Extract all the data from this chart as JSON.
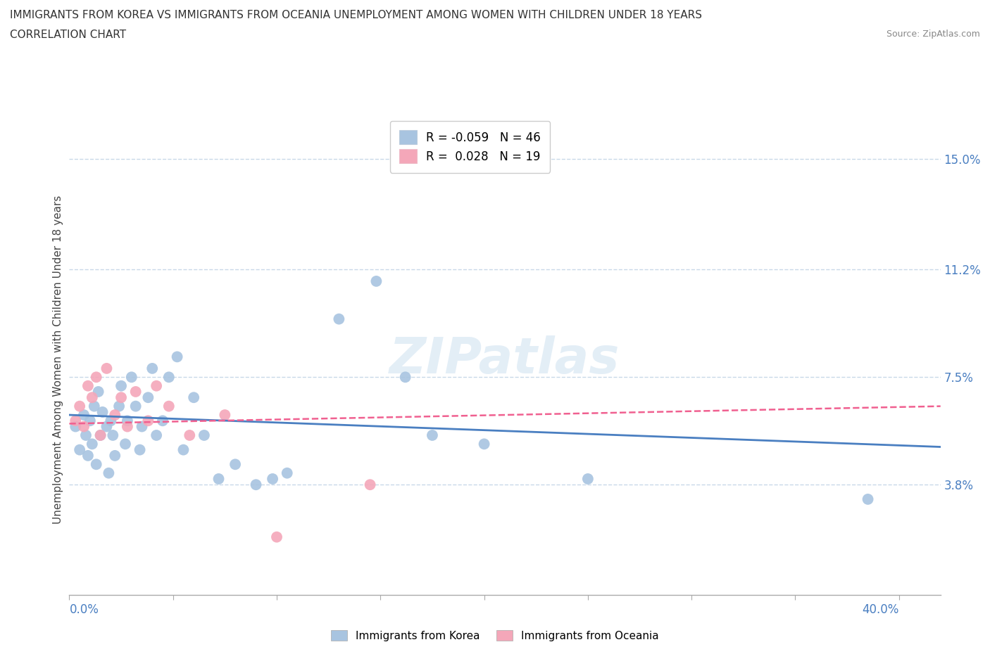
{
  "title_line1": "IMMIGRANTS FROM KOREA VS IMMIGRANTS FROM OCEANIA UNEMPLOYMENT AMONG WOMEN WITH CHILDREN UNDER 18 YEARS",
  "title_line2": "CORRELATION CHART",
  "source_text": "Source: ZipAtlas.com",
  "ylabel_ticks": [
    0.038,
    0.075,
    0.112,
    0.15
  ],
  "ylabel_labels": [
    "3.8%",
    "7.5%",
    "11.2%",
    "15.0%"
  ],
  "xmin": 0.0,
  "xmax": 0.42,
  "ymin": 0.0,
  "ymax": 0.162,
  "ylabel": "Unemployment Among Women with Children Under 18 years",
  "legend_korea_R": "-0.059",
  "legend_korea_N": "46",
  "legend_oceania_R": "0.028",
  "legend_oceania_N": "19",
  "korea_color": "#a8c4e0",
  "oceania_color": "#f4a7b9",
  "korea_line_color": "#4a7fc1",
  "oceania_line_color": "#f06090",
  "grid_color": "#c8d8e8",
  "watermark": "ZIPatlas",
  "korea_scatter_x": [
    0.003,
    0.005,
    0.007,
    0.008,
    0.009,
    0.01,
    0.011,
    0.012,
    0.013,
    0.014,
    0.015,
    0.016,
    0.018,
    0.019,
    0.02,
    0.021,
    0.022,
    0.024,
    0.025,
    0.027,
    0.028,
    0.03,
    0.032,
    0.034,
    0.035,
    0.038,
    0.04,
    0.042,
    0.045,
    0.048,
    0.052,
    0.055,
    0.06,
    0.065,
    0.072,
    0.08,
    0.09,
    0.098,
    0.105,
    0.13,
    0.148,
    0.162,
    0.175,
    0.2,
    0.25,
    0.385
  ],
  "korea_scatter_y": [
    0.058,
    0.05,
    0.062,
    0.055,
    0.048,
    0.06,
    0.052,
    0.065,
    0.045,
    0.07,
    0.055,
    0.063,
    0.058,
    0.042,
    0.06,
    0.055,
    0.048,
    0.065,
    0.072,
    0.052,
    0.06,
    0.075,
    0.065,
    0.05,
    0.058,
    0.068,
    0.078,
    0.055,
    0.06,
    0.075,
    0.082,
    0.05,
    0.068,
    0.055,
    0.04,
    0.045,
    0.038,
    0.04,
    0.042,
    0.095,
    0.108,
    0.075,
    0.055,
    0.052,
    0.04,
    0.033
  ],
  "oceania_scatter_x": [
    0.003,
    0.005,
    0.007,
    0.009,
    0.011,
    0.013,
    0.015,
    0.018,
    0.022,
    0.025,
    0.028,
    0.032,
    0.038,
    0.042,
    0.048,
    0.058,
    0.075,
    0.1,
    0.145
  ],
  "oceania_scatter_y": [
    0.06,
    0.065,
    0.058,
    0.072,
    0.068,
    0.075,
    0.055,
    0.078,
    0.062,
    0.068,
    0.058,
    0.07,
    0.06,
    0.072,
    0.065,
    0.055,
    0.062,
    0.02,
    0.038
  ],
  "korea_trend_x0": 0.0,
  "korea_trend_x1": 0.42,
  "korea_trend_y0": 0.062,
  "korea_trend_y1": 0.051,
  "oceania_trend_x0": 0.0,
  "oceania_trend_x1": 0.42,
  "oceania_trend_y0": 0.059,
  "oceania_trend_y1": 0.065
}
